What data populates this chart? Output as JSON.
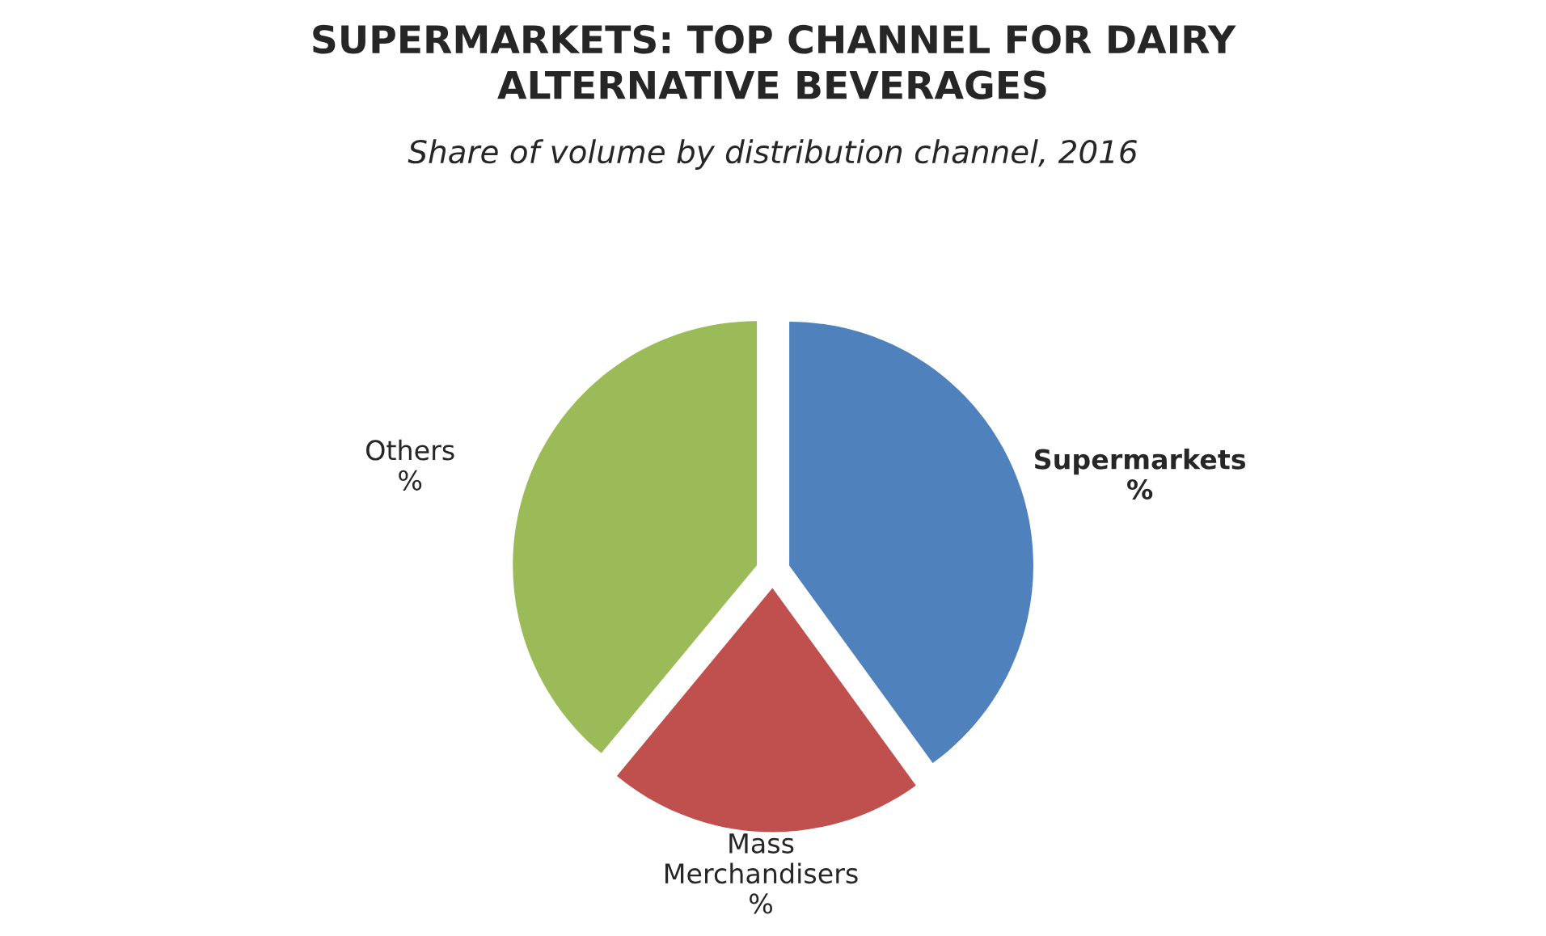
{
  "chart_data": {
    "type": "pie",
    "title": "SUPERMARKETS: TOP CHANNEL FOR DAIRY\nALTERNATIVE BEVERAGES",
    "subtitle": "Share of volume by distribution channel, 2016",
    "categories": [
      "Supermarkets",
      "Mass\nMerchandisers",
      "Others"
    ],
    "values": [
      40,
      21,
      39
    ],
    "colors": [
      "#4f81bd",
      "#c0504d",
      "#9bbb59"
    ],
    "value_labels": [
      "%",
      "%",
      "%"
    ]
  }
}
